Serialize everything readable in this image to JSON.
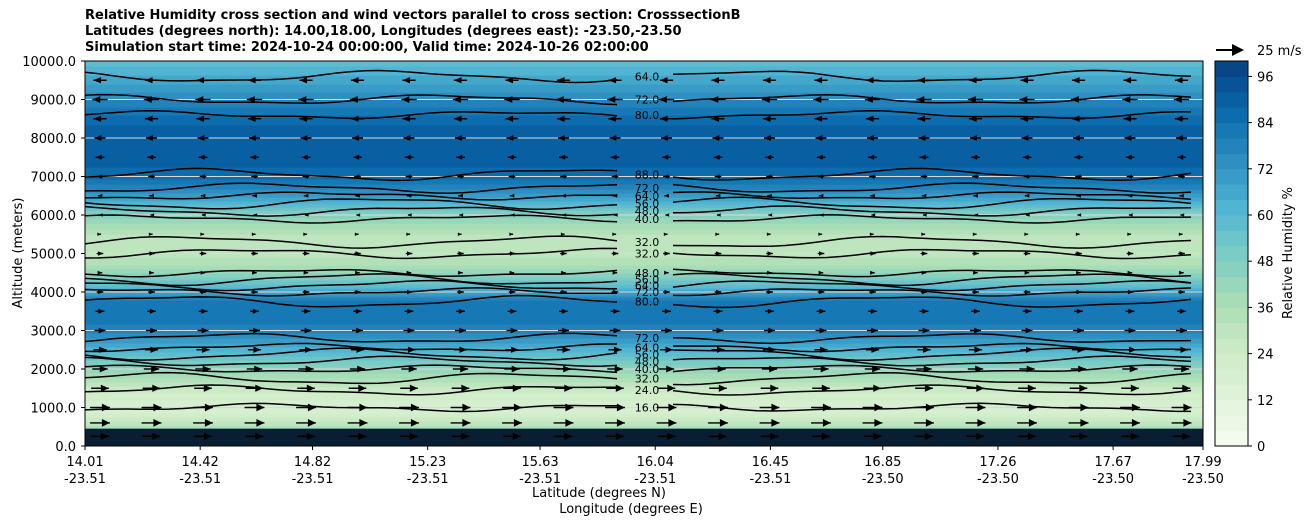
{
  "title_lines": [
    "Relative Humidity cross section and wind vectors parallel to cross section: CrosssectionB",
    "Latitudes (degrees north): 14.00,18.00, Longitudes (degrees east): -23.50,-23.50",
    "Simulation start time: 2024-10-24 00:00:00, Valid time: 2024-10-26 02:00:00"
  ],
  "chart_data": {
    "type": "heatmap",
    "ylabel": "Altitude (meters)",
    "xlabel": "Latitude (degrees N)",
    "xlabel2": "Longitude (degrees E)",
    "ylim": [
      0,
      10000
    ],
    "yticks": [
      "0.0",
      "1000.0",
      "2000.0",
      "3000.0",
      "4000.0",
      "5000.0",
      "6000.0",
      "7000.0",
      "8000.0",
      "9000.0",
      "10000.0"
    ],
    "xticks": [
      {
        "lat": "14.01",
        "lon": "-23.51"
      },
      {
        "lat": "14.42",
        "lon": "-23.51"
      },
      {
        "lat": "14.82",
        "lon": "-23.51"
      },
      {
        "lat": "15.23",
        "lon": "-23.51"
      },
      {
        "lat": "15.63",
        "lon": "-23.51"
      },
      {
        "lat": "16.04",
        "lon": "-23.51"
      },
      {
        "lat": "16.45",
        "lon": "-23.51"
      },
      {
        "lat": "16.85",
        "lon": "-23.50"
      },
      {
        "lat": "17.26",
        "lon": "-23.50"
      },
      {
        "lat": "17.67",
        "lon": "-23.50"
      },
      {
        "lat": "17.99",
        "lon": "-23.50"
      }
    ],
    "colorbar": {
      "label": "Relative Humidity %",
      "range": [
        0,
        100
      ],
      "ticks": [
        "0",
        "12",
        "24",
        "36",
        "48",
        "60",
        "72",
        "84",
        "96"
      ]
    },
    "wind_key": "25 m/s",
    "grid": "horizontal",
    "rh_profile": [
      {
        "alt": 0,
        "rh": 96
      },
      {
        "alt": 250,
        "rh": 92
      },
      {
        "alt": 500,
        "rh": 34
      },
      {
        "alt": 800,
        "rh": 22
      },
      {
        "alt": 1000,
        "rh": 16
      },
      {
        "alt": 1500,
        "rh": 26
      },
      {
        "alt": 2000,
        "rh": 44
      },
      {
        "alt": 2500,
        "rh": 62
      },
      {
        "alt": 3000,
        "rh": 78
      },
      {
        "alt": 3500,
        "rh": 84
      },
      {
        "alt": 3800,
        "rh": 80
      },
      {
        "alt": 4200,
        "rh": 56
      },
      {
        "alt": 4700,
        "rh": 36
      },
      {
        "alt": 5000,
        "rh": 30
      },
      {
        "alt": 5500,
        "rh": 32
      },
      {
        "alt": 6000,
        "rh": 46
      },
      {
        "alt": 6500,
        "rh": 70
      },
      {
        "alt": 7000,
        "rh": 86
      },
      {
        "alt": 7500,
        "rh": 90
      },
      {
        "alt": 8000,
        "rh": 92
      },
      {
        "alt": 8500,
        "rh": 86
      },
      {
        "alt": 9000,
        "rh": 76
      },
      {
        "alt": 9500,
        "rh": 66
      },
      {
        "alt": 10000,
        "rh": 58
      }
    ],
    "contours": [
      {
        "label": "16.0",
        "alt": 1000
      },
      {
        "label": "24.0",
        "alt": 1450
      },
      {
        "label": "32.0",
        "alt": 1750
      },
      {
        "label": "40.0",
        "alt": 2000
      },
      {
        "label": "48.0",
        "alt": 2200
      },
      {
        "label": "56.0",
        "alt": 2380
      },
      {
        "label": "64.0",
        "alt": 2560
      },
      {
        "label": "72.0",
        "alt": 2800
      },
      {
        "label": "80.0",
        "alt": 3750
      },
      {
        "label": "72.0",
        "alt": 4000
      },
      {
        "label": "64.0",
        "alt": 4170
      },
      {
        "label": "56.0",
        "alt": 4330
      },
      {
        "label": "48.0",
        "alt": 4500
      },
      {
        "label": "32.0",
        "alt": 5000
      },
      {
        "label": "32.0",
        "alt": 5300
      },
      {
        "label": "40.0",
        "alt": 5900
      },
      {
        "label": "48.0",
        "alt": 6100
      },
      {
        "label": "56.0",
        "alt": 6300
      },
      {
        "label": "64.0",
        "alt": 6500
      },
      {
        "label": "72.0",
        "alt": 6700
      },
      {
        "label": "88.0",
        "alt": 7050
      },
      {
        "label": "80.0",
        "alt": 8600
      },
      {
        "label": "72.0",
        "alt": 9000
      },
      {
        "label": "64.0",
        "alt": 9600
      }
    ],
    "wind_levels": [
      {
        "alt": 250,
        "u": 8
      },
      {
        "alt": 600,
        "u": 9
      },
      {
        "alt": 1000,
        "u": 9
      },
      {
        "alt": 1500,
        "u": 8
      },
      {
        "alt": 2000,
        "u": 7
      },
      {
        "alt": 2500,
        "u": 6
      },
      {
        "alt": 3000,
        "u": 5
      },
      {
        "alt": 3500,
        "u": 4
      },
      {
        "alt": 4000,
        "u": 3
      },
      {
        "alt": 4500,
        "u": 2
      },
      {
        "alt": 5000,
        "u": 3
      },
      {
        "alt": 5500,
        "u": 1
      },
      {
        "alt": 6000,
        "u": -1
      },
      {
        "alt": 6500,
        "u": -2
      },
      {
        "alt": 7000,
        "u": -3
      },
      {
        "alt": 7500,
        "u": -4
      },
      {
        "alt": 8000,
        "u": -5
      },
      {
        "alt": 8500,
        "u": -6
      },
      {
        "alt": 9000,
        "u": -7
      },
      {
        "alt": 9500,
        "u": -6
      }
    ]
  }
}
